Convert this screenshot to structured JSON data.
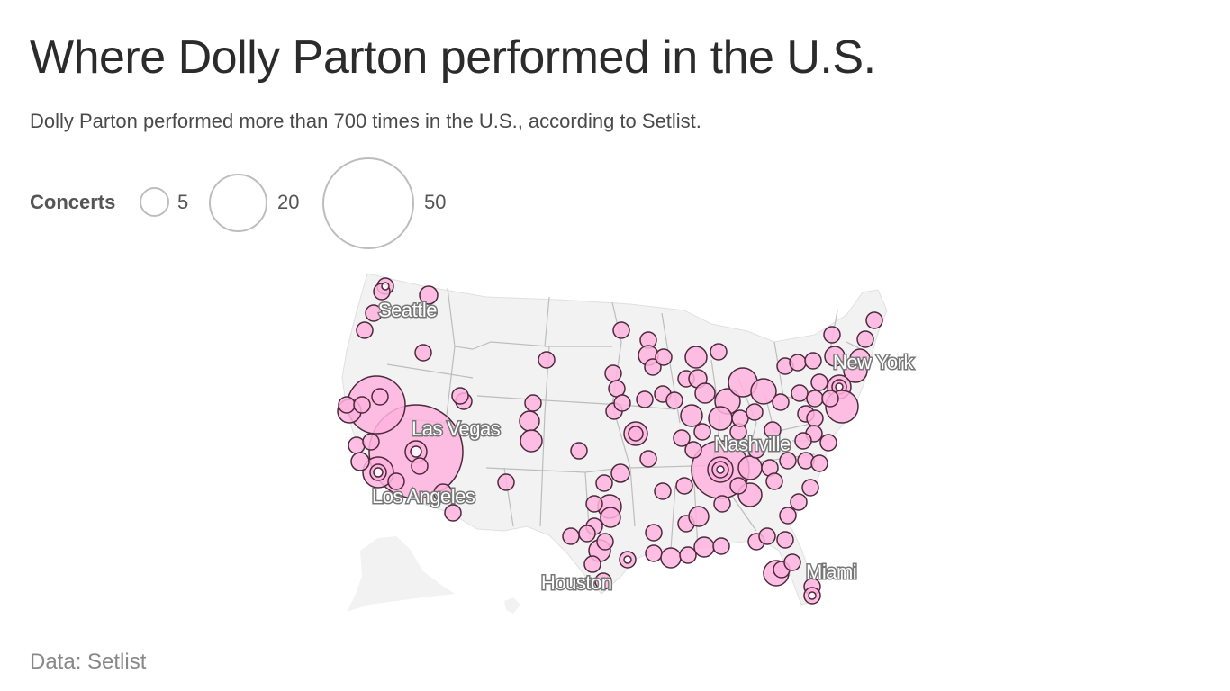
{
  "title": "Where Dolly Parton performed in the U.S.",
  "subtitle": "Dolly Parton performed more than 700 times in the U.S., according to Setlist.",
  "legend": {
    "title": "Concerts",
    "sizes": [
      {
        "label": "5",
        "value": 5
      },
      {
        "label": "20",
        "value": 20
      },
      {
        "label": "50",
        "value": 50
      }
    ]
  },
  "source": "Data: Setlist",
  "colors": {
    "bubble_fill": "#ffb3df",
    "bubble_stroke": "#4a2a3a",
    "land": "#f2f2f2",
    "state_borders": "#bdbdbd",
    "legend_circle": "#bdbdbd"
  },
  "map": {
    "type": "proportional-symbol-map",
    "region": "United States",
    "city_labels": [
      "Seattle",
      "New York",
      "Las Vegas",
      "Nashville",
      "Los Angeles",
      "Miami",
      "Houston"
    ]
  }
}
